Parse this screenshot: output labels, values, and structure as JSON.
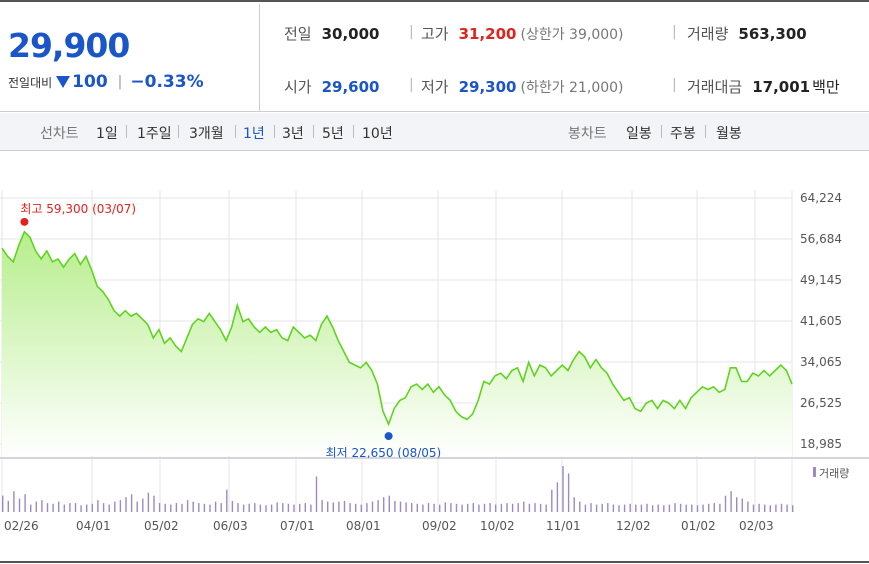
{
  "quote": {
    "price": "29,900",
    "change_label": "전일대비",
    "change": "100",
    "rate": "−0.33%"
  },
  "stats": {
    "prev_close": {
      "label": "전일",
      "value": "30,000"
    },
    "high": {
      "label": "고가",
      "value": "31,200",
      "note": "(상한가 39,000)"
    },
    "volume": {
      "label": "거래량",
      "value": "563,300"
    },
    "open": {
      "label": "시가",
      "value": "29,600"
    },
    "low": {
      "label": "저가",
      "value": "29,300",
      "note": "(하한가 21,000)"
    },
    "amount": {
      "label": "거래대금",
      "value": "17,001",
      "unit": "백만"
    }
  },
  "tabs": {
    "line_title": "선차트",
    "line_periods": [
      "1일",
      "1주일",
      "3개월",
      "1년",
      "3년",
      "5년",
      "10년"
    ],
    "active_period": "1년",
    "candle_title": "봉차트",
    "candle_periods": [
      "일봉",
      "주봉",
      "월봉"
    ]
  },
  "colors": {
    "accent_blue": "#1a56c8",
    "accent_red": "#e0231f",
    "line_green": "#5fd420",
    "fill_green": "#c8f3a4",
    "volume_purple": "#9b8ac4"
  },
  "chart_data": {
    "type": "area",
    "ylim": [
      18985,
      64224
    ],
    "yticks": [
      "64,224",
      "56,684",
      "49,145",
      "41,605",
      "34,065",
      "26,525",
      "18,985"
    ],
    "xticks": [
      "02/26",
      "04/01",
      "05/02",
      "06/03",
      "07/01",
      "08/01",
      "09/02",
      "10/02",
      "11/01",
      "12/02",
      "01/02",
      "02/03"
    ],
    "series": [
      {
        "values": [
          55000,
          53500,
          52500,
          55500,
          58000,
          57000,
          54500,
          53000,
          54500,
          52500,
          53000,
          51500,
          53000,
          54000,
          52000,
          53500,
          51000,
          48000,
          47000,
          45500,
          43500,
          42500,
          43500,
          42500,
          43000,
          42000,
          41000,
          38500,
          40000,
          37500,
          38500,
          37000,
          36000,
          38500,
          41000,
          42000,
          41500,
          43000,
          41500,
          40000,
          38000,
          40500,
          44500,
          41500,
          42000,
          40500,
          39500,
          40500,
          39500,
          40000,
          38500,
          38000,
          40500,
          39500,
          38500,
          39000,
          38000,
          41000,
          42500,
          40500,
          38000,
          36000,
          34000,
          33500,
          33000,
          34000,
          32500,
          30000,
          25000,
          22650,
          25500,
          27000,
          27500,
          29500,
          30000,
          29000,
          30000,
          28500,
          29500,
          28000,
          27000,
          25000,
          24000,
          23500,
          24500,
          27000,
          30500,
          30000,
          31500,
          32000,
          31000,
          32500,
          33000,
          30500,
          34000,
          31500,
          33500,
          33000,
          31500,
          32500,
          33500,
          32500,
          34500,
          36000,
          35000,
          33000,
          34500,
          33000,
          32000,
          30000,
          28500,
          27000,
          27500,
          25500,
          25000,
          26500,
          27000,
          25500,
          27000,
          26500,
          25500,
          27000,
          25500,
          27500,
          28500,
          29500,
          29000,
          29500,
          28500,
          29000,
          33000,
          33000,
          30500,
          30500,
          32000,
          31500,
          32500,
          31500,
          32500,
          33500,
          32500,
          30000
        ],
        "high_label": "최고 59,300 (03/07)",
        "low_label": "최저 22,650 (08/05)"
      }
    ],
    "volume": {
      "legend": "거래량",
      "values": [
        22,
        15,
        28,
        18,
        24,
        10,
        14,
        16,
        12,
        11,
        14,
        10,
        12,
        12,
        9,
        10,
        11,
        16,
        12,
        10,
        14,
        16,
        20,
        24,
        14,
        18,
        26,
        22,
        12,
        11,
        10,
        12,
        11,
        16,
        14,
        12,
        11,
        10,
        14,
        12,
        30,
        15,
        12,
        10,
        11,
        12,
        10,
        9,
        10,
        13,
        12,
        11,
        10,
        11,
        12,
        10,
        48,
        16,
        14,
        13,
        14,
        15,
        12,
        11,
        10,
        12,
        14,
        16,
        20,
        22,
        15,
        14,
        13,
        12,
        11,
        10,
        12,
        11,
        10,
        13,
        12,
        11,
        10,
        11,
        12,
        10,
        11,
        12,
        10,
        11,
        12,
        11,
        12,
        14,
        11,
        12,
        11,
        10,
        30,
        40,
        62,
        52,
        20,
        14,
        10,
        12,
        10,
        11,
        12,
        10,
        9,
        10,
        11,
        10,
        10,
        11,
        9,
        10,
        9,
        10,
        12,
        11,
        10,
        10,
        9,
        10,
        11,
        12,
        11,
        22,
        28,
        20,
        18,
        14,
        10,
        11,
        10,
        9,
        10,
        11,
        10,
        9
      ]
    }
  }
}
